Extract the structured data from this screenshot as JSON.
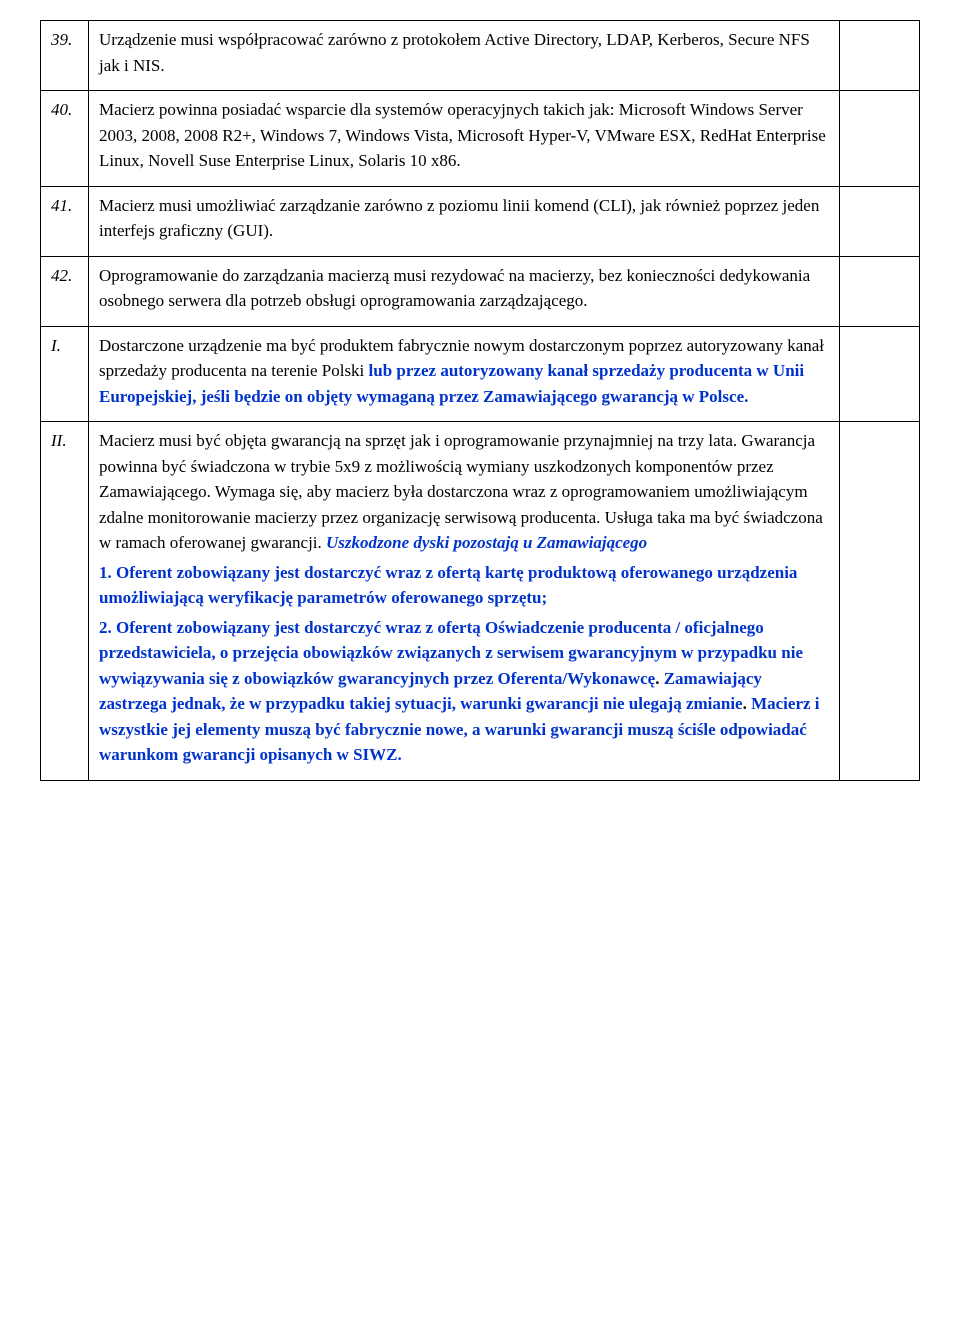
{
  "rows": [
    {
      "num": "39.",
      "segments": [
        {
          "text": "Urządzenie musi współpracować zarówno z protokołem Active Directory, LDAP, Kerberos, Secure NFS jak i NIS."
        }
      ]
    },
    {
      "num": "40.",
      "segments": [
        {
          "text": "Macierz powinna posiadać wsparcie dla systemów operacyjnych takich jak: Microsoft Windows Server 2003, 2008, 2008 R2+, Windows 7, Windows Vista, Microsoft Hyper-V, VMware ESX, RedHat Enterprise Linux, Novell Suse Enterprise Linux, Solaris 10 x86."
        }
      ]
    },
    {
      "num": "41.",
      "segments": [
        {
          "text": "Macierz musi umożliwiać zarządzanie zarówno z poziomu linii komend (CLI), jak również poprzez jeden interfejs graficzny (GUI)."
        }
      ]
    },
    {
      "num": "42.",
      "segments": [
        {
          "text": "Oprogramowanie do zarządzania macierzą musi rezydować na macierzy, bez konieczności dedykowania osobnego serwera dla potrzeb obsługi oprogramowania zarządzającego."
        }
      ]
    },
    {
      "num": "I.",
      "segments": [
        {
          "text": "Dostarczone urządzenie ma być produktem fabrycznie nowym dostarczonym poprzez autoryzowany kanał sprzedaży producenta na terenie Polski "
        },
        {
          "text": "lub  przez autoryzowany kanał sprzedaży producenta w Unii Europejskiej, jeśli będzie on objęty wymaganą przez Zamawiającego gwarancją w Polsce.",
          "cls": "blue"
        }
      ]
    },
    {
      "num": "II.",
      "segments": [
        {
          "text": "Macierz musi być objęta gwarancją na sprzęt jak i oprogramowanie przynajmniej na trzy lata. Gwarancja powinna być świadczona w trybie 5x9 z możliwością wymiany uszkodzonych komponentów przez Zamawiającego. Wymaga się, aby macierz była dostarczona wraz z oprogramowaniem umożliwiającym zdalne monitorowanie macierzy przez organizację serwisową producenta. Usługa taka ma być świadczona w ramach oferowanej gwarancji. "
        },
        {
          "text": "Uszkodzone dyski pozostają u Zamawiającego",
          "cls": "blue-italic"
        },
        {
          "text": "1. Oferent zobowiązany jest dostarczyć wraz z ofertą kartę produktową oferowanego urządzenia umożliwiającą weryfikację parametrów oferowanego sprzętu;",
          "cls": "blue",
          "break": true
        },
        {
          "text": "2. Oferent zobowiązany jest dostarczyć wraz z ofertą Oświadczenie producenta / oficjalnego przedstawiciela, o przejęcia obowiązków związanych z serwisem gwarancyjnym w przypadku nie wywiązywania się z obowiązków gwarancyjnych przez Oferenta/Wykonawcę",
          "cls": "blue",
          "break": true
        },
        {
          "text": ". ",
          "cls": "bold"
        },
        {
          "text": "Zamawiający zastrzega jednak, że w przypadku takiej sytuacji, warunki gwarancji nie ulegają zmianie",
          "cls": "blue"
        },
        {
          "text": ". ",
          "cls": "bold"
        },
        {
          "text": "Macierz i wszystkie jej elementy muszą być fabrycznie nowe, a warunki gwarancji muszą ściśle odpowiadać warunkom gwarancji opisanych w SIWZ.",
          "cls": "blue"
        }
      ]
    }
  ]
}
